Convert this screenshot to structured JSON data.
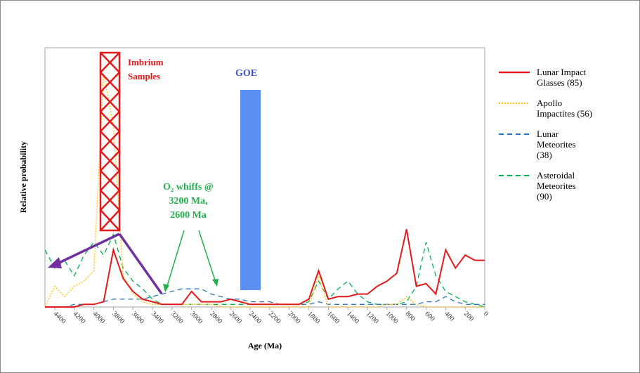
{
  "chart_data": {
    "type": "line",
    "y_label": "Relative probability",
    "x_label": "Age (Ma)",
    "annotations": [
      {
        "lines": [
          "Imbrium",
          "Samples"
        ]
      },
      {
        "lines": [
          "GOE"
        ]
      },
      {
        "lines": [
          "O₂ whiffs @",
          "3200 Ma,",
          "2600 Ma"
        ]
      }
    ],
    "x": [
      4500,
      4400,
      4300,
      4200,
      4100,
      4000,
      3900,
      3800,
      3700,
      3600,
      3500,
      3400,
      3300,
      3200,
      3100,
      3000,
      2900,
      2800,
      2700,
      2600,
      2500,
      2400,
      2300,
      2200,
      2100,
      2000,
      1900,
      1800,
      1700,
      1600,
      1500,
      1400,
      1300,
      1200,
      1100,
      1000,
      900,
      800,
      700,
      600,
      500,
      400,
      300,
      200,
      100,
      0
    ],
    "xlim": [
      4500,
      0
    ],
    "ylim": [
      0,
      100
    ],
    "xticks": [
      4400,
      4200,
      4000,
      3800,
      3600,
      3400,
      3200,
      3000,
      2800,
      2600,
      2400,
      2200,
      2000,
      1800,
      1600,
      1400,
      1200,
      1000,
      800,
      600,
      400,
      200,
      0
    ],
    "series": [
      {
        "name": "Lunar Impact Glasses (85)",
        "color": "#e41a1c",
        "linestyle": "solid",
        "values": [
          0,
          0,
          0,
          0,
          1,
          1,
          2,
          22,
          11,
          6,
          3,
          2,
          1,
          1,
          1,
          6,
          2,
          2,
          2,
          3,
          2,
          1,
          1,
          1,
          1,
          1,
          1,
          3,
          14,
          3,
          4,
          4,
          5,
          5,
          8,
          10,
          13,
          30,
          8,
          9,
          5,
          22,
          15,
          20,
          18,
          18
        ]
      },
      {
        "name": "Apollo Impactites (56)",
        "color": "#ffc000",
        "linestyle": "dotted",
        "values": [
          0,
          8,
          4,
          8,
          10,
          14,
          90,
          70,
          12,
          5,
          2,
          1,
          1,
          1,
          1,
          1,
          1,
          1,
          0,
          0,
          0,
          0,
          0,
          0,
          0,
          0,
          0,
          0,
          12,
          0,
          0,
          0,
          0,
          0,
          0,
          1,
          1,
          4,
          1,
          0,
          0,
          0,
          0,
          0,
          0,
          0
        ]
      },
      {
        "name": "Lunar Meteorites (38)",
        "color": "#2e75b6",
        "linestyle": "dashed",
        "values": [
          0,
          0,
          0,
          1,
          1,
          1,
          2,
          3,
          3,
          3,
          3,
          4,
          5,
          6,
          7,
          7,
          7,
          5,
          4,
          3,
          3,
          2,
          2,
          2,
          1,
          1,
          1,
          1,
          2,
          1,
          1,
          1,
          1,
          1,
          1,
          1,
          1,
          1,
          1,
          2,
          2,
          4,
          2,
          1,
          1,
          1
        ]
      },
      {
        "name": "Asteroidal Meteorites (90)",
        "color": "#00b050",
        "linestyle": "dashed",
        "values": [
          22,
          15,
          18,
          12,
          20,
          25,
          20,
          28,
          15,
          10,
          7,
          3,
          1,
          1,
          1,
          1,
          1,
          1,
          1,
          1,
          1,
          1,
          1,
          1,
          1,
          1,
          1,
          2,
          10,
          3,
          7,
          10,
          5,
          2,
          1,
          1,
          1,
          2,
          8,
          25,
          12,
          6,
          4,
          2,
          1,
          0
        ]
      }
    ]
  }
}
